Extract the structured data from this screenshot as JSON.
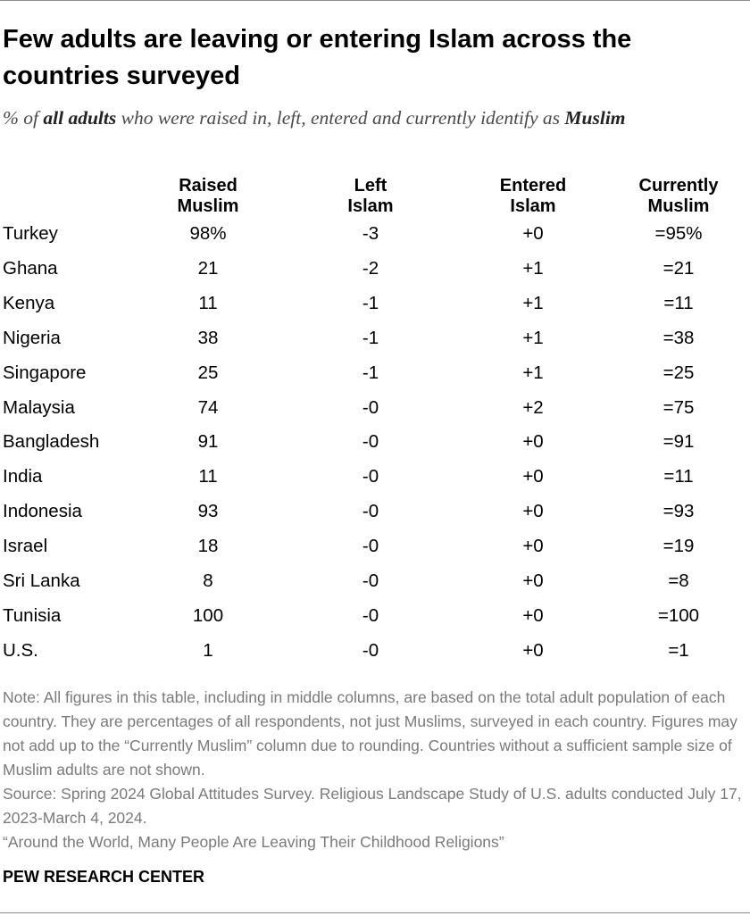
{
  "title": "Few adults are leaving or entering Islam across the countries surveyed",
  "subtitle": {
    "prefix": "% of ",
    "emphasis": "all adults",
    "middle": " who were raised in, left, entered and currently identify as ",
    "last": "Muslim"
  },
  "chart_data": {
    "type": "table",
    "columns": [
      {
        "key": "raised",
        "label_lines": [
          "Raised",
          "Muslim"
        ]
      },
      {
        "key": "left",
        "label_lines": [
          "Left",
          "Islam"
        ]
      },
      {
        "key": "entered",
        "label_lines": [
          "Entered",
          "Islam"
        ]
      },
      {
        "key": "current",
        "label_lines": [
          "Currently",
          "Muslim"
        ]
      }
    ],
    "rows": [
      {
        "country": "Turkey",
        "raised": "98%",
        "left": "-3",
        "entered": "+0",
        "current": "=95%"
      },
      {
        "country": "Ghana",
        "raised": "21",
        "left": "-2",
        "entered": "+1",
        "current": "=21"
      },
      {
        "country": "Kenya",
        "raised": "11",
        "left": "-1",
        "entered": "+1",
        "current": "=11"
      },
      {
        "country": "Nigeria",
        "raised": "38",
        "left": "-1",
        "entered": "+1",
        "current": "=38"
      },
      {
        "country": "Singapore",
        "raised": "25",
        "left": "-1",
        "entered": "+1",
        "current": "=25"
      },
      {
        "country": "Malaysia",
        "raised": "74",
        "left": "-0",
        "entered": "+2",
        "current": "=75"
      },
      {
        "country": "Bangladesh",
        "raised": "91",
        "left": "-0",
        "entered": "+0",
        "current": "=91"
      },
      {
        "country": "India",
        "raised": "11",
        "left": "-0",
        "entered": "+0",
        "current": "=11"
      },
      {
        "country": "Indonesia",
        "raised": "93",
        "left": "-0",
        "entered": "+0",
        "current": "=93"
      },
      {
        "country": "Israel",
        "raised": "18",
        "left": "-0",
        "entered": "+0",
        "current": "=19"
      },
      {
        "country": "Sri Lanka",
        "raised": "8",
        "left": "-0",
        "entered": "+0",
        "current": "=8"
      },
      {
        "country": "Tunisia",
        "raised": "100",
        "left": "-0",
        "entered": "+0",
        "current": "=100"
      },
      {
        "country": "U.S.",
        "raised": "1",
        "left": "-0",
        "entered": "+0",
        "current": "=1"
      }
    ]
  },
  "notes": {
    "note": "Note: All figures in this table, including in middle columns, are based on the total adult population of each country. They are percentages of all respondents, not just Muslims, surveyed in each country. Figures may not add up to the “Currently Muslim” column due to rounding. Countries without a sufficient sample size of Muslim adults are not shown.",
    "source": "Source: Spring 2024 Global Attitudes Survey. Religious Landscape Study of U.S. adults conducted July 17, 2023-March 4, 2024.",
    "report": "“Around the World, Many People Are Leaving Their Childhood Religions”"
  },
  "brand": "PEW RESEARCH CENTER"
}
